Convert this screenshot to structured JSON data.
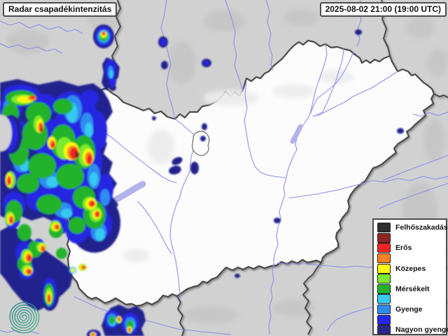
{
  "header": {
    "title": "Radar csapadékintenzitás",
    "timestamp": "2025-08-02 21:00 (19:00 UTC)"
  },
  "legend": {
    "items": [
      {
        "label": "Felhőszakadás",
        "color": "#2e2e2e"
      },
      {
        "label": "",
        "color": "#8f2626"
      },
      {
        "label": "Erős",
        "color": "#f22424"
      },
      {
        "label": "",
        "color": "#f8811f"
      },
      {
        "label": "Közepes",
        "color": "#f8f811"
      },
      {
        "label": "",
        "color": "#7bea2e"
      },
      {
        "label": "Mérsékelt",
        "color": "#22b32a"
      },
      {
        "label": "",
        "color": "#35c8f0"
      },
      {
        "label": "Gyenge",
        "color": "#2e8cf0"
      },
      {
        "label": "",
        "color": "#2626f0"
      },
      {
        "label": "Nagyon gyenge",
        "color": "#28288c"
      }
    ]
  },
  "colors": {
    "terrain_outside": "#d2d2d2",
    "terrain_inside": "#fcfcfc",
    "country_border": "#4c4c4c",
    "river": "#8a8af0",
    "lake": "#b2b2ec",
    "logo_teal": "#1d7f8c",
    "logo_green": "#52b788"
  }
}
